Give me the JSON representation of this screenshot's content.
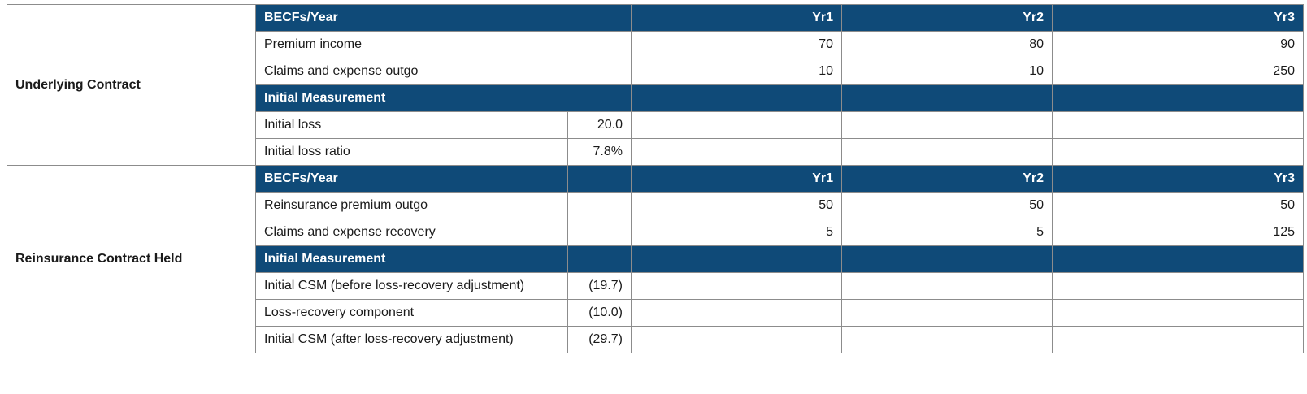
{
  "sections": [
    {
      "name": "Underlying Contract",
      "header": {
        "label": "BECFs/Year",
        "years": [
          "Yr1",
          "Yr2",
          "Yr3"
        ]
      },
      "rows": [
        {
          "label": "Premium income",
          "values": [
            "70",
            "80",
            "90"
          ]
        },
        {
          "label": "Claims and expense outgo",
          "values": [
            "10",
            "10",
            "250"
          ]
        }
      ],
      "measurement_header": "Initial Measurement",
      "measurements": [
        {
          "label": "Initial loss",
          "value": "20.0"
        },
        {
          "label": "Initial loss ratio",
          "value": "7.8%"
        }
      ]
    },
    {
      "name": "Reinsurance Contract Held",
      "header": {
        "label": "BECFs/Year",
        "years": [
          "Yr1",
          "Yr2",
          "Yr3"
        ]
      },
      "rows": [
        {
          "label": "Reinsurance premium outgo",
          "values": [
            "50",
            "50",
            "50"
          ]
        },
        {
          "label": "Claims and expense recovery",
          "values": [
            "5",
            "5",
            "125"
          ]
        }
      ],
      "measurement_header": "Initial Measurement",
      "measurements": [
        {
          "label": "Initial CSM (before loss-recovery adjustment)",
          "value": "(19.7)"
        },
        {
          "label": "Loss-recovery component",
          "value": "(10.0)"
        },
        {
          "label": "Initial CSM (after loss-recovery adjustment)",
          "value": "(29.7)"
        }
      ]
    }
  ],
  "colors": {
    "header_bg": "#0f4a78",
    "header_text": "#ffffff",
    "border": "#8c8c8c"
  }
}
